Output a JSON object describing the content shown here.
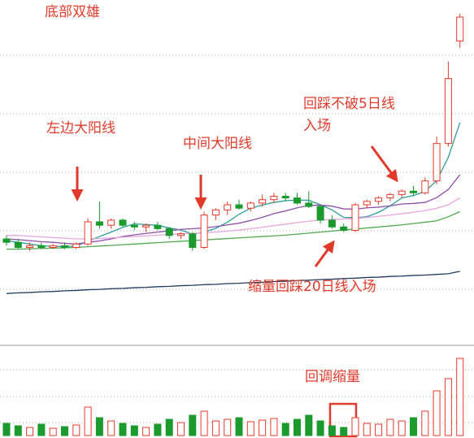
{
  "chart_data": [
    {
      "type": "candlestick",
      "annotations": [
        "底部双雄",
        "左边大阳线",
        "中间大阳线",
        "回踩不破5日线",
        "入场",
        "缩量回踩20日线入场",
        "回调缩量"
      ],
      "open": [
        30,
        29,
        27.5,
        28,
        27.5,
        28,
        27.5,
        28.5,
        35,
        34,
        35.5,
        34,
        33.5,
        34,
        33,
        31,
        31.5,
        27.5,
        37,
        38.5,
        40,
        39,
        40.5,
        41.5,
        42.5,
        42,
        40.5,
        39.5,
        35.5,
        33.5,
        32.5,
        40,
        41,
        42,
        43,
        44,
        43.5,
        47,
        58,
        88
      ],
      "high": [
        31,
        30,
        29,
        29,
        28.5,
        29,
        29,
        36,
        41,
        36,
        36,
        35,
        34.5,
        35,
        33.5,
        32,
        32,
        38,
        39,
        41,
        41.5,
        41,
        43,
        43.5,
        43.5,
        43.5,
        44,
        40,
        37,
        34.5,
        40.5,
        41.5,
        42.5,
        43.5,
        44.5,
        45.5,
        48,
        60,
        82,
        96
      ],
      "low": [
        28,
        27,
        26.5,
        27,
        27,
        27,
        27,
        28,
        33,
        33,
        33.5,
        32.5,
        32,
        32.5,
        30,
        30,
        26.5,
        27,
        35.5,
        37,
        38.5,
        38,
        39.5,
        40.5,
        41,
        40,
        39,
        34.5,
        33,
        32,
        32,
        39,
        40,
        41,
        42,
        42.5,
        43,
        46,
        57,
        86
      ],
      "close": [
        29,
        27.5,
        28,
        27.5,
        28,
        27.5,
        28.5,
        35,
        34,
        35.5,
        34,
        33.5,
        34,
        33,
        31,
        31.5,
        27.5,
        37,
        38.5,
        40,
        39,
        40.5,
        41.5,
        42.5,
        42,
        40.5,
        39.5,
        35.5,
        33.5,
        32.5,
        40,
        41,
        42,
        43,
        44,
        43.5,
        47,
        58,
        77,
        95
      ],
      "up_color": "#e8392a",
      "down_color": "#1b9a2e",
      "ylim": [
        0,
        100
      ],
      "series": [
        {
          "color": "#2a9d9a",
          "values": [
            29.5,
            29,
            28.5,
            28,
            27.8,
            27.8,
            27.9,
            29.3,
            30.7,
            32,
            33.4,
            34.4,
            34.2,
            34,
            33.2,
            32.6,
            31.4,
            32,
            33.1,
            34.9,
            37.2,
            39,
            39.9,
            40.7,
            41.2,
            41.4,
            41.3,
            40,
            38.5,
            36.3,
            36.2,
            36.5,
            37.8,
            39.7,
            42,
            42.7,
            43.9,
            47.1,
            53.9,
            64.1
          ]
        },
        {
          "color": "#8e4fa6",
          "values": [
            30,
            29.8,
            29.5,
            29.2,
            29,
            28.7,
            28.5,
            29,
            29.4,
            30,
            30.7,
            31.2,
            31.6,
            32,
            32.4,
            32.8,
            33,
            33.2,
            33.6,
            34.1,
            34.6,
            35.4,
            36.3,
            37.4,
            38.2,
            39.1,
            39.8,
            39.9,
            39.6,
            38.8,
            38.7,
            39.1,
            39.3,
            39.7,
            40.2,
            40.4,
            40.7,
            42.1,
            44.5,
            48.8
          ]
        },
        {
          "color": "#e6a6e0",
          "values": [
            31,
            31,
            30.8,
            30.6,
            30.4,
            30.2,
            30,
            30,
            30.1,
            30.3,
            30.5,
            30.7,
            30.9,
            31.1,
            31.3,
            31.5,
            31.6,
            31.8,
            32,
            32.3,
            32.6,
            33,
            33.4,
            33.9,
            34.3,
            34.8,
            35.2,
            35.5,
            35.7,
            35.8,
            36,
            36.3,
            36.6,
            37,
            37.4,
            37.8,
            38.3,
            39,
            40,
            42
          ]
        },
        {
          "color": "#4faa4f",
          "values": [
            27,
            27,
            27.1,
            27.2,
            27.3,
            27.4,
            27.5,
            27.7,
            27.9,
            28.1,
            28.3,
            28.5,
            28.7,
            28.9,
            29.1,
            29.3,
            29.5,
            29.7,
            29.9,
            30.1,
            30.3,
            30.5,
            30.7,
            30.9,
            31.1,
            31.4,
            31.7,
            32,
            32.3,
            32.6,
            32.9,
            33.2,
            33.5,
            33.8,
            34.1,
            34.5,
            34.9,
            35.3,
            36.5,
            38
          ]
        },
        {
          "color": "#1f3a5c",
          "values": [
            14,
            14.2,
            14.3,
            14.5,
            14.6,
            14.8,
            14.9,
            15.1,
            15.2,
            15.4,
            15.5,
            15.7,
            15.8,
            16,
            16.1,
            16.3,
            16.4,
            16.6,
            16.7,
            16.9,
            17,
            17.2,
            17.3,
            17.5,
            17.6,
            17.8,
            17.9,
            18.1,
            18.2,
            18.4,
            18.5,
            18.7,
            18.8,
            19,
            19.1,
            19.3,
            19.4,
            19.6,
            19.8,
            20.5
          ]
        }
      ]
    },
    {
      "type": "bar",
      "values": [
        15,
        12,
        10,
        14,
        9,
        11,
        13,
        35,
        22,
        18,
        15,
        12,
        10,
        14,
        20,
        16,
        25,
        30,
        18,
        20,
        22,
        17,
        19,
        21,
        15,
        20,
        25,
        18,
        12,
        10,
        22,
        15,
        14,
        20,
        18,
        22,
        30,
        55,
        70,
        95
      ],
      "ylim": [
        0,
        100
      ]
    }
  ]
}
